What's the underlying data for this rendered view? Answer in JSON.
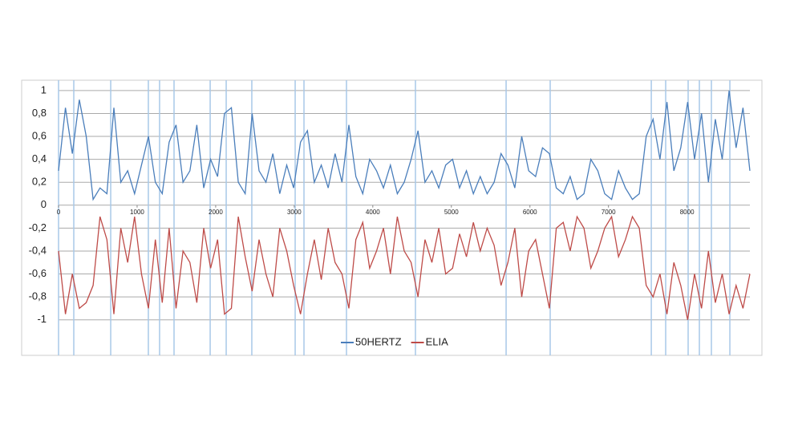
{
  "chart_data": {
    "type": "line",
    "x": [
      0,
      88,
      176,
      264,
      352,
      440,
      528,
      616,
      704,
      792,
      880,
      968,
      1056,
      1144,
      1232,
      1320,
      1408,
      1496,
      1584,
      1672,
      1760,
      1848,
      1936,
      2024,
      2112,
      2200,
      2288,
      2376,
      2464,
      2552,
      2640,
      2728,
      2816,
      2904,
      2992,
      3080,
      3168,
      3256,
      3344,
      3432,
      3520,
      3608,
      3696,
      3784,
      3872,
      3960,
      4048,
      4136,
      4224,
      4312,
      4400,
      4488,
      4576,
      4664,
      4752,
      4840,
      4928,
      5016,
      5104,
      5192,
      5280,
      5368,
      5456,
      5544,
      5632,
      5720,
      5808,
      5896,
      5984,
      6072,
      6160,
      6248,
      6336,
      6424,
      6512,
      6600,
      6688,
      6776,
      6864,
      6952,
      7040,
      7128,
      7216,
      7304,
      7392,
      7480,
      7568,
      7656,
      7744,
      7832,
      7920,
      8008,
      8096,
      8184,
      8272,
      8360,
      8448,
      8536,
      8624,
      8712,
      8800
    ],
    "series": [
      {
        "name": "50HERTZ",
        "color": "#4a7ebb",
        "values": [
          0.3,
          0.85,
          0.45,
          0.92,
          0.6,
          0.05,
          0.15,
          0.1,
          0.85,
          0.2,
          0.3,
          0.1,
          0.35,
          0.6,
          0.2,
          0.1,
          0.55,
          0.7,
          0.2,
          0.3,
          0.7,
          0.15,
          0.4,
          0.25,
          0.8,
          0.85,
          0.2,
          0.1,
          0.8,
          0.3,
          0.2,
          0.45,
          0.1,
          0.35,
          0.15,
          0.55,
          0.65,
          0.2,
          0.35,
          0.15,
          0.45,
          0.2,
          0.7,
          0.25,
          0.1,
          0.4,
          0.3,
          0.15,
          0.35,
          0.1,
          0.2,
          0.4,
          0.65,
          0.2,
          0.3,
          0.15,
          0.35,
          0.4,
          0.15,
          0.3,
          0.1,
          0.25,
          0.1,
          0.2,
          0.45,
          0.35,
          0.15,
          0.6,
          0.3,
          0.25,
          0.5,
          0.45,
          0.15,
          0.1,
          0.25,
          0.05,
          0.1,
          0.4,
          0.3,
          0.1,
          0.05,
          0.3,
          0.15,
          0.05,
          0.1,
          0.6,
          0.75,
          0.4,
          0.9,
          0.3,
          0.5,
          0.9,
          0.4,
          0.8,
          0.2,
          0.75,
          0.4,
          1,
          0.5,
          0.85,
          0.3
        ]
      },
      {
        "name": "ELIA",
        "color": "#be4b48",
        "values": [
          -0.4,
          -0.95,
          -0.6,
          -0.9,
          -0.85,
          -0.7,
          -0.1,
          -0.3,
          -0.95,
          -0.2,
          -0.5,
          -0.1,
          -0.6,
          -0.9,
          -0.3,
          -0.85,
          -0.2,
          -0.9,
          -0.4,
          -0.5,
          -0.85,
          -0.2,
          -0.55,
          -0.3,
          -0.95,
          -0.9,
          -0.1,
          -0.45,
          -0.75,
          -0.3,
          -0.6,
          -0.8,
          -0.2,
          -0.4,
          -0.7,
          -0.95,
          -0.6,
          -0.3,
          -0.65,
          -0.2,
          -0.5,
          -0.6,
          -0.9,
          -0.3,
          -0.15,
          -0.55,
          -0.4,
          -0.2,
          -0.6,
          -0.1,
          -0.4,
          -0.5,
          -0.8,
          -0.3,
          -0.5,
          -0.2,
          -0.6,
          -0.55,
          -0.25,
          -0.45,
          -0.15,
          -0.4,
          -0.2,
          -0.35,
          -0.7,
          -0.5,
          -0.2,
          -0.8,
          -0.4,
          -0.3,
          -0.6,
          -0.9,
          -0.2,
          -0.15,
          -0.4,
          -0.1,
          -0.2,
          -0.55,
          -0.4,
          -0.2,
          -0.1,
          -0.45,
          -0.3,
          -0.1,
          -0.2,
          -0.7,
          -0.8,
          -0.6,
          -0.95,
          -0.5,
          -0.7,
          -1,
          -0.6,
          -0.9,
          -0.4,
          -0.85,
          -0.6,
          -0.95,
          -0.7,
          -0.9,
          -0.6
        ]
      }
    ],
    "xlim": [
      0,
      8800
    ],
    "xticks": [
      0,
      1000,
      2000,
      3000,
      4000,
      5000,
      6000,
      7000,
      8000
    ],
    "ylim": [
      -1.31,
      1.09
    ],
    "yticks": [
      -1,
      {
        "value": -0.8,
        "label": "-0,8"
      },
      {
        "value": -0.6,
        "label": "-0,6"
      },
      {
        "value": -0.4,
        "label": "-0,4"
      },
      {
        "value": -0.2,
        "label": "-0,2"
      },
      0,
      {
        "value": 0.2,
        "label": "0,2"
      },
      {
        "value": 0.4,
        "label": "0,4"
      },
      {
        "value": 0.6,
        "label": "0,6"
      },
      {
        "value": 0.8,
        "label": "0,8"
      },
      1
    ],
    "vlines": [
      0,
      194,
      664,
      1143,
      1286,
      1470,
      1930,
      2134,
      2460,
      3012,
      3124,
      3665,
      4543,
      5697,
      6258,
      7545,
      7728,
      8014,
      8157,
      8310,
      8545
    ],
    "vline_color": "#a8c8e8",
    "grid": true
  }
}
